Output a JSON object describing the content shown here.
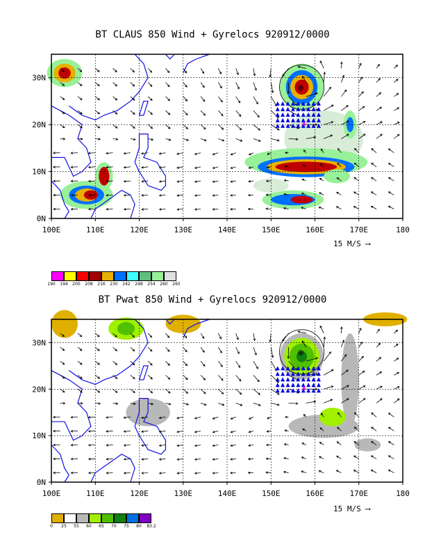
{
  "panels": [
    {
      "title": "BT CLAUS 850 Wind + Gyrelocs 920912/0000",
      "lat_labels": [
        "0N",
        "10N",
        "20N",
        "30N"
      ],
      "lon_labels": [
        "100E",
        "110E",
        "120E",
        "130E",
        "140E",
        "150E",
        "160E",
        "170E",
        "180"
      ],
      "vector_scale": "15 M/S",
      "legend": {
        "labels": [
          "190",
          "194",
          "200",
          "208",
          "216",
          "230",
          "242",
          "248",
          "254",
          "260",
          "265"
        ],
        "colors": [
          "#ff00ff",
          "#ffff00",
          "#ff0000",
          "#a00000",
          "#e8b000",
          "#0070ff",
          "#40ffff",
          "#60c080",
          "#98f098",
          "#e0e0e0"
        ]
      }
    },
    {
      "title": "BT Pwat 850 Wind + Gyrelocs 920912/0000",
      "lat_labels": [
        "0N",
        "10N",
        "20N",
        "30N"
      ],
      "lon_labels": [
        "100E",
        "110E",
        "120E",
        "130E",
        "140E",
        "150E",
        "160E",
        "170E",
        "180"
      ],
      "vector_scale": "15 M/S",
      "legend": {
        "labels": [
          "0",
          "25",
          "55",
          "60",
          "65",
          "70",
          "75",
          "80",
          "83.2"
        ],
        "colors": [
          "#e0b000",
          "#ffffff",
          "#b8b8b8",
          "#a0f000",
          "#50c000",
          "#108010",
          "#0070e0",
          "#8000c0"
        ]
      }
    }
  ]
}
